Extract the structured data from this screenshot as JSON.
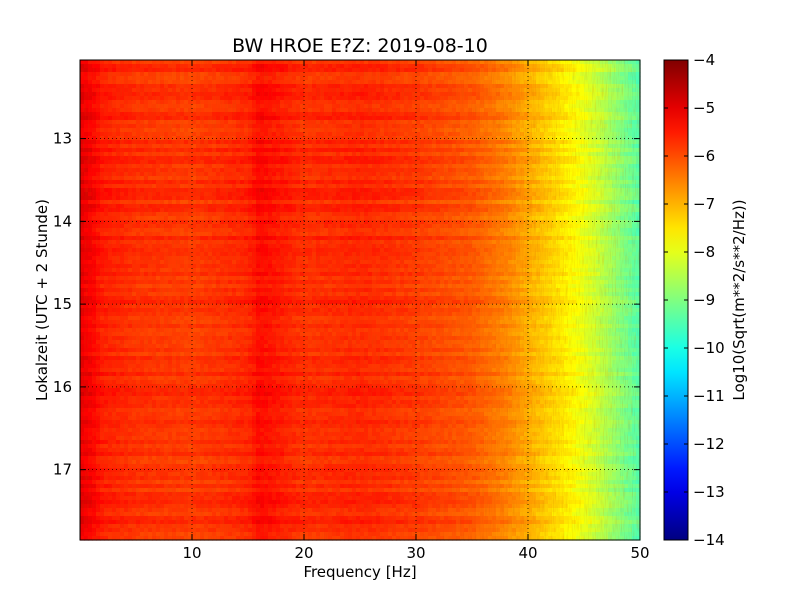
{
  "chart_data": {
    "type": "heatmap",
    "title": "BW HROE E?Z: 2019-08-10",
    "xlabel": "Frequency [Hz]",
    "ylabel": "Lokalzeit (UTC + 2 Stunde)",
    "colorbar_label": "Log10(Sqrt(m**2/s**2/Hz))",
    "xlim": [
      0,
      50
    ],
    "ylim": [
      12.05,
      17.85
    ],
    "y_inverted": true,
    "xticks": [
      10,
      20,
      30,
      40,
      50
    ],
    "xtick_labels": [
      "10",
      "20",
      "30",
      "40",
      "50"
    ],
    "yticks": [
      13,
      14,
      15,
      16,
      17
    ],
    "ytick_labels": [
      "13",
      "14",
      "15",
      "16",
      "17"
    ],
    "colorbar_ticks": [
      -4,
      -5,
      -6,
      -7,
      -8,
      -9,
      -10,
      -11,
      -12,
      -13,
      -14
    ],
    "colorbar_tick_labels": [
      "−4",
      "−5",
      "−6",
      "−7",
      "−8",
      "−9",
      "−10",
      "−11",
      "−12",
      "−13",
      "−14"
    ],
    "colorbar_range": [
      -14,
      -4
    ],
    "colormap": "jet",
    "grid": true,
    "spectrum_profile": {
      "frequency_hz": [
        0,
        1,
        2,
        5,
        10,
        15,
        16,
        20,
        25,
        30,
        35,
        38,
        40,
        42,
        44,
        46,
        48,
        50
      ],
      "log10_amplitude": [
        -5.0,
        -5.2,
        -5.5,
        -5.7,
        -5.8,
        -5.6,
        -5.3,
        -5.7,
        -5.6,
        -5.8,
        -6.1,
        -6.5,
        -6.9,
        -7.3,
        -7.7,
        -8.2,
        -8.8,
        -9.4
      ]
    }
  }
}
